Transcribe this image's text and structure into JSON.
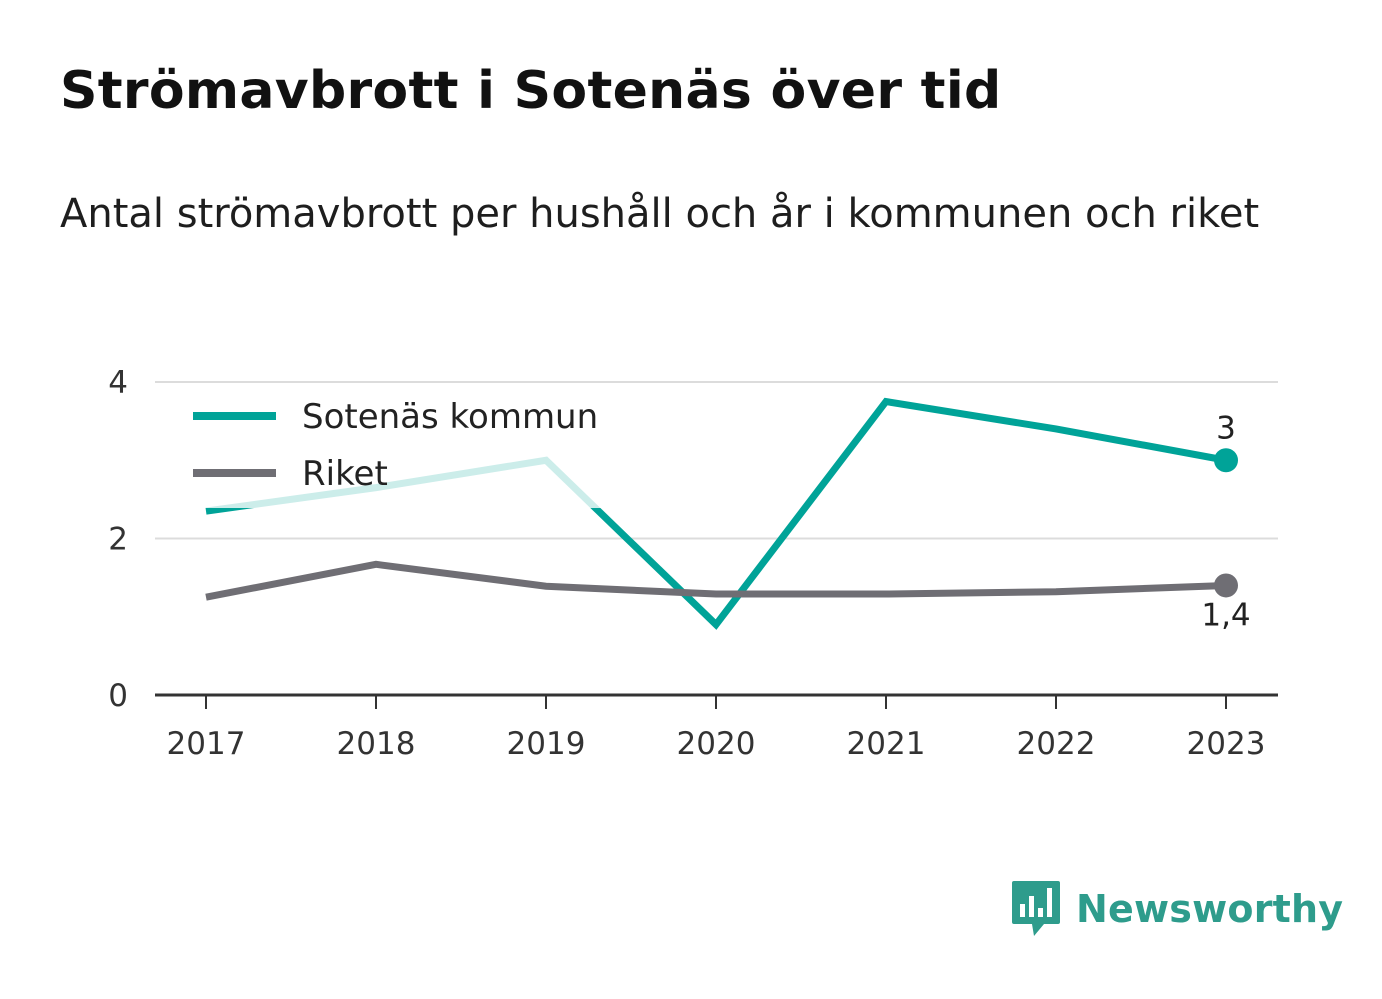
{
  "title": "Strömavbrott i Sotenäs över tid",
  "subtitle": "Antal strömavbrott per hushåll och år i kommunen och riket",
  "brand": {
    "name": "Newsworthy",
    "icon": "newsworthy-logo-icon",
    "color": "#2e9c8c"
  },
  "chart_data": {
    "type": "line",
    "categories": [
      "2017",
      "2018",
      "2019",
      "2020",
      "2021",
      "2022",
      "2023"
    ],
    "series": [
      {
        "name": "Sotenäs kommun",
        "color": "#00a398",
        "values": [
          2.35,
          2.65,
          3.0,
          0.9,
          3.75,
          3.4,
          3.0
        ],
        "end_label": "3"
      },
      {
        "name": "Riket",
        "color": "#6f6e74",
        "values": [
          1.25,
          1.67,
          1.39,
          1.29,
          1.29,
          1.32,
          1.4
        ],
        "end_label": "1,4"
      }
    ],
    "yticks": [
      "0",
      "2",
      "4"
    ],
    "ylim": [
      0,
      4
    ],
    "grid": true,
    "legend_position": "top-left",
    "title": "",
    "xlabel": "",
    "ylabel": ""
  }
}
